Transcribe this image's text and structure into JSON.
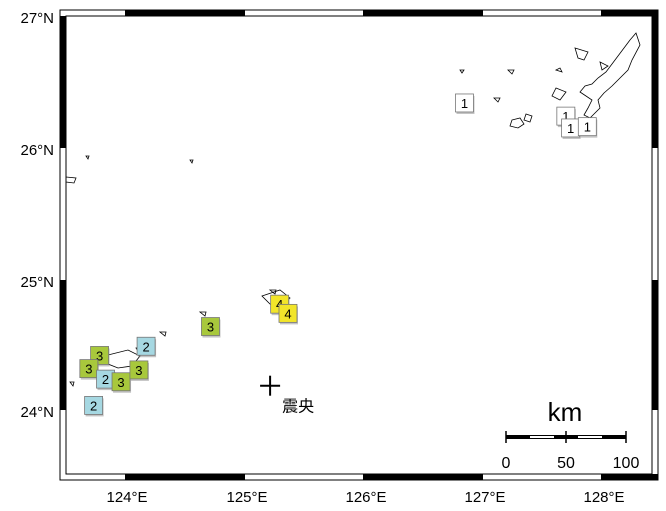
{
  "map": {
    "lat_labels": [
      "27°N",
      "26°N",
      "25°N",
      "24°N"
    ],
    "lon_labels": [
      "124°E",
      "125°E",
      "126°E",
      "127°E",
      "128°E"
    ],
    "epicenter": {
      "label": "震央",
      "lon": 125.2,
      "lat": 24.2
    },
    "intensity_markers": [
      {
        "value": "3",
        "lon": 123.77,
        "lat": 24.43,
        "color": "#a8c83c"
      },
      {
        "value": "3",
        "lon": 123.68,
        "lat": 24.33,
        "color": "#a8c83c"
      },
      {
        "value": "2",
        "lon": 123.82,
        "lat": 24.25,
        "color": "#a6d8e2"
      },
      {
        "value": "2",
        "lon": 123.72,
        "lat": 24.05,
        "color": "#a6d8e2"
      },
      {
        "value": "3",
        "lon": 123.95,
        "lat": 24.23,
        "color": "#a8c83c"
      },
      {
        "value": "3",
        "lon": 124.1,
        "lat": 24.32,
        "color": "#a8c83c"
      },
      {
        "value": "2",
        "lon": 124.16,
        "lat": 24.5,
        "color": "#a6d8e2"
      },
      {
        "value": "3",
        "lon": 124.7,
        "lat": 24.65,
        "color": "#a8c83c"
      },
      {
        "value": "4",
        "lon": 125.28,
        "lat": 24.82,
        "color": "#f2e52a"
      },
      {
        "value": "4",
        "lon": 125.35,
        "lat": 24.75,
        "color": "#f2e52a"
      },
      {
        "value": "1",
        "lon": 126.83,
        "lat": 26.35,
        "color": "#ffffff"
      },
      {
        "value": "1",
        "lon": 127.68,
        "lat": 26.25,
        "color": "#ffffff"
      },
      {
        "value": "1",
        "lon": 127.72,
        "lat": 26.16,
        "color": "#ffffff"
      },
      {
        "value": "1",
        "lon": 127.86,
        "lat": 26.17,
        "color": "#ffffff"
      }
    ],
    "scale_bar": {
      "unit": "km",
      "ticks": [
        "0",
        "50",
        "100"
      ]
    }
  }
}
